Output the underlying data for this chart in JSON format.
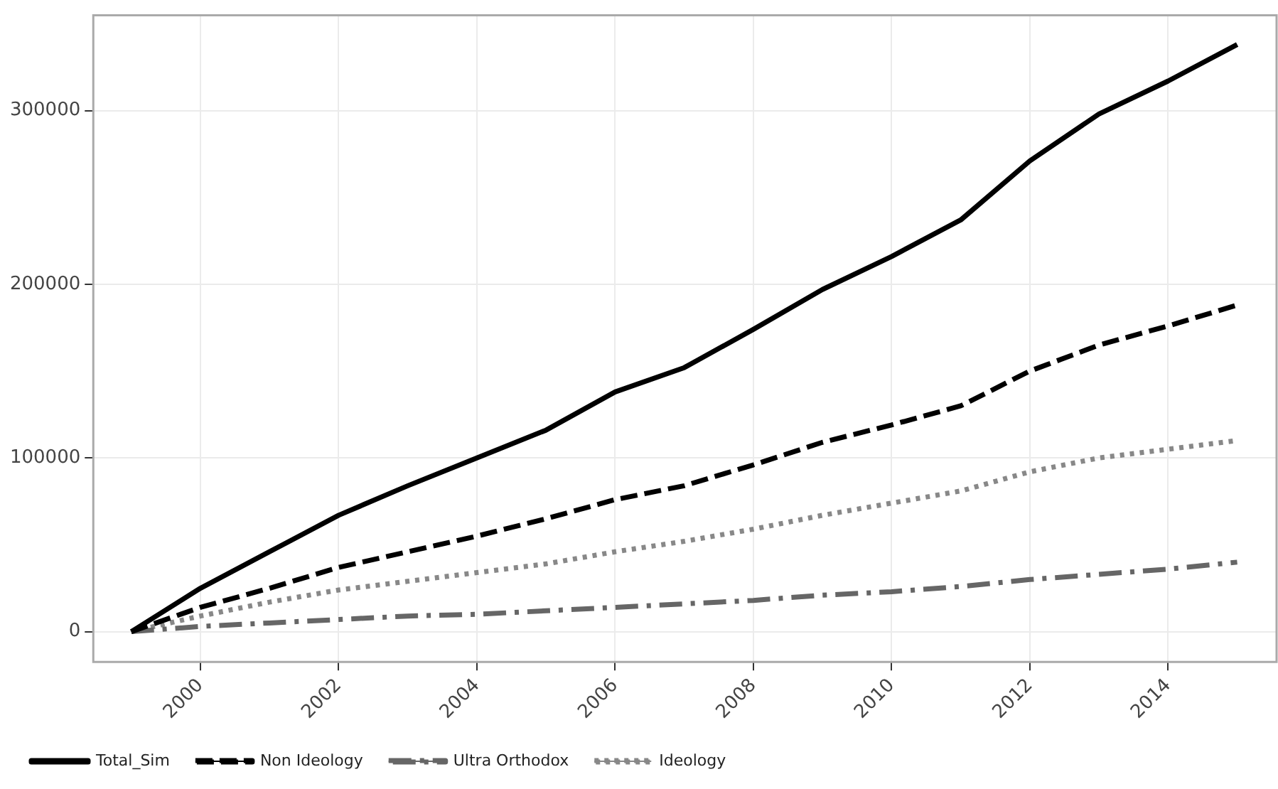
{
  "chart_data": {
    "type": "line",
    "x": [
      1999,
      2000,
      2001,
      2002,
      2003,
      2004,
      2005,
      2006,
      2007,
      2008,
      2009,
      2010,
      2011,
      2012,
      2013,
      2014,
      2015
    ],
    "series": [
      {
        "name": "Total_Sim",
        "color": "#000000",
        "line_style": "solid",
        "values": [
          0,
          25000,
          46000,
          67000,
          84000,
          100000,
          116000,
          138000,
          152000,
          174000,
          197000,
          216000,
          237000,
          271000,
          298000,
          317000,
          338000
        ]
      },
      {
        "name": "Non Ideology",
        "color": "#000000",
        "line_style": "dashed",
        "values": [
          0,
          14000,
          25000,
          37000,
          46000,
          55000,
          65000,
          76000,
          84000,
          96000,
          109000,
          119000,
          130000,
          150000,
          165000,
          176000,
          188000
        ]
      },
      {
        "name": "Ultra Orthodox",
        "color": "#666666",
        "line_style": "dashdot",
        "values": [
          0,
          3000,
          5000,
          7000,
          9000,
          10000,
          12000,
          14000,
          16000,
          18000,
          21000,
          23000,
          26000,
          30000,
          33000,
          36000,
          40000
        ]
      },
      {
        "name": "Ideology",
        "color": "#888888",
        "line_style": "dotted",
        "values": [
          0,
          9000,
          17000,
          24000,
          29000,
          34000,
          39000,
          46000,
          52000,
          59000,
          67000,
          74000,
          81000,
          92000,
          100000,
          105000,
          110000
        ]
      }
    ],
    "xlim": [
      1998.45,
      2015.57
    ],
    "xticks": [
      2000,
      2002,
      2004,
      2006,
      2008,
      2010,
      2012,
      2014
    ],
    "ylim": [
      -17400,
      354800
    ],
    "yticks": [
      0,
      100000,
      200000,
      300000
    ],
    "grid": true,
    "legend": "bottom",
    "marker": "none"
  }
}
